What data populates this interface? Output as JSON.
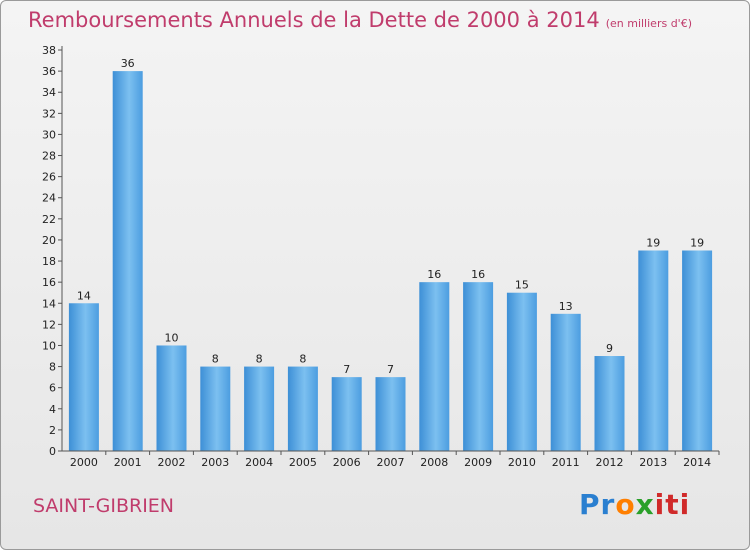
{
  "chart_data": {
    "type": "bar",
    "title": "Remboursements Annuels de la Dette de 2000 à 2014",
    "unit": "(en milliers d'€)",
    "categories": [
      "2000",
      "2001",
      "2002",
      "2003",
      "2004",
      "2005",
      "2006",
      "2007",
      "2008",
      "2009",
      "2010",
      "2011",
      "2012",
      "2013",
      "2014"
    ],
    "values": [
      14,
      36,
      10,
      8,
      8,
      8,
      7,
      7,
      16,
      16,
      15,
      13,
      9,
      19,
      19
    ],
    "ylim": [
      0,
      38
    ],
    "yticks": [
      0,
      2,
      4,
      6,
      8,
      10,
      12,
      14,
      16,
      18,
      20,
      22,
      24,
      26,
      28,
      30,
      32,
      34,
      36,
      38
    ],
    "grid": false,
    "bar_color": "#3d8fd6",
    "bar_color_light": "#7cc0f0"
  },
  "commune": "SAINT-GIBRIEN",
  "logo": {
    "p1": "Pr",
    "p2": "o",
    "p3": "x",
    "p4": "iti"
  },
  "colors": {
    "title": "#c03c6c",
    "logo_p": "#2a7fd0",
    "logo_o": "#ff7f00",
    "logo_x": "#2aa02a",
    "logo_iti": "#d02a2a"
  }
}
